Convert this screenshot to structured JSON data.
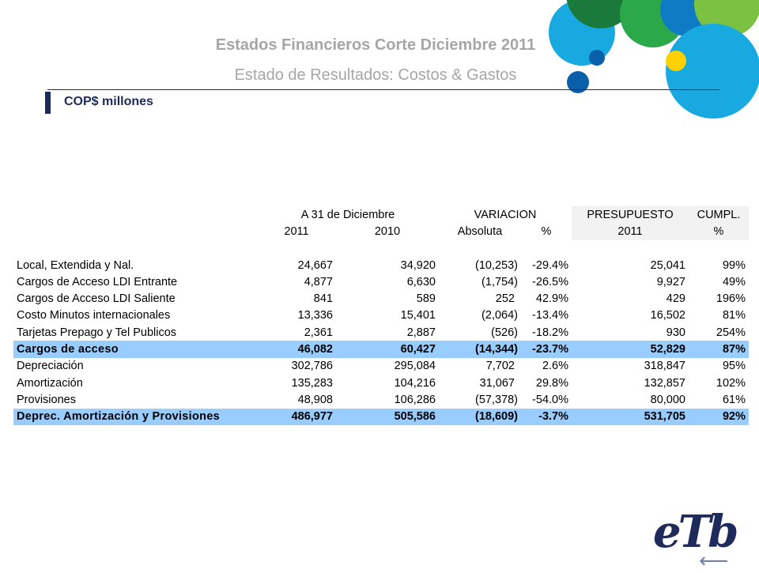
{
  "header": {
    "title": "Estados Financieros Corte Diciembre 2011",
    "subtitle": "Estado de Resultados: Costos & Gastos",
    "units": "COP$ millones"
  },
  "colors": {
    "navy": "#1f2a5c",
    "total_row": "#99ccff",
    "title_gray": "#a6a6a6",
    "circle_green_dark": "#1a7a3c",
    "circle_green": "#2aa84a",
    "circle_cyan": "#19a9e1",
    "circle_blue": "#0f7bc4",
    "circle_lime": "#7cc242",
    "circle_yellow": "#ffd100",
    "circle_navy": "#0b5ea8"
  },
  "table": {
    "group_headers": {
      "period": "A 31 de Diciembre",
      "variation": "VARIACION",
      "budget": "PRESUPUESTO",
      "compliance": "CUMPL."
    },
    "sub_headers": {
      "y2011": "2011",
      "y2010": "2010",
      "absolute": "Absoluta",
      "pct": "%",
      "budget_year": "2011",
      "compliance_pct": "%"
    },
    "section1": [
      {
        "label": "Local, Extendida y Nal.",
        "v2011": "24,667",
        "v2010": "34,920",
        "abs": "(10,253)",
        "pct": "-29.4%",
        "budget": "25,041",
        "cumpl": "99%"
      },
      {
        "label": "Cargos de Acceso LDI Entrante",
        "v2011": "4,877",
        "v2010": "6,630",
        "abs": "(1,754)",
        "pct": "-26.5%",
        "budget": "9,927",
        "cumpl": "49%"
      },
      {
        "label": "Cargos de Acceso LDI Saliente",
        "v2011": "841",
        "v2010": "589",
        "abs": "252",
        "pct": "42.9%",
        "budget": "429",
        "cumpl": "196%"
      },
      {
        "label": "Costo Minutos internacionales",
        "v2011": "13,336",
        "v2010": "15,401",
        "abs": "(2,064)",
        "pct": "-13.4%",
        "budget": "16,502",
        "cumpl": "81%"
      },
      {
        "label": "Tarjetas Prepago y Tel Publicos",
        "v2011": "2,361",
        "v2010": "2,887",
        "abs": "(526)",
        "pct": "-18.2%",
        "budget": "930",
        "cumpl": "254%"
      }
    ],
    "total1": {
      "label": "Cargos de acceso",
      "v2011": "46,082",
      "v2010": "60,427",
      "abs": "(14,344)",
      "pct": "-23.7%",
      "budget": "52,829",
      "cumpl": "87%"
    },
    "section2": [
      {
        "label": "Depreciación",
        "v2011": "302,786",
        "v2010": "295,084",
        "abs": "7,702",
        "pct": "2.6%",
        "budget": "318,847",
        "cumpl": "95%"
      },
      {
        "label": "Amortización",
        "v2011": "135,283",
        "v2010": "104,216",
        "abs": "31,067",
        "pct": "29.8%",
        "budget": "132,857",
        "cumpl": "102%"
      },
      {
        "label": "Provisiones",
        "v2011": "48,908",
        "v2010": "106,286",
        "abs": "(57,378)",
        "pct": "-54.0%",
        "budget": "80,000",
        "cumpl": "61%"
      }
    ],
    "total2": {
      "label": "Deprec. Amortización y Provisiones",
      "v2011": "486,977",
      "v2010": "505,586",
      "abs": "(18,609)",
      "pct": "-3.7%",
      "budget": "531,705",
      "cumpl": "92%"
    }
  },
  "footer": {
    "logo": "eTb",
    "back_icon": "back-arrow-icon"
  }
}
